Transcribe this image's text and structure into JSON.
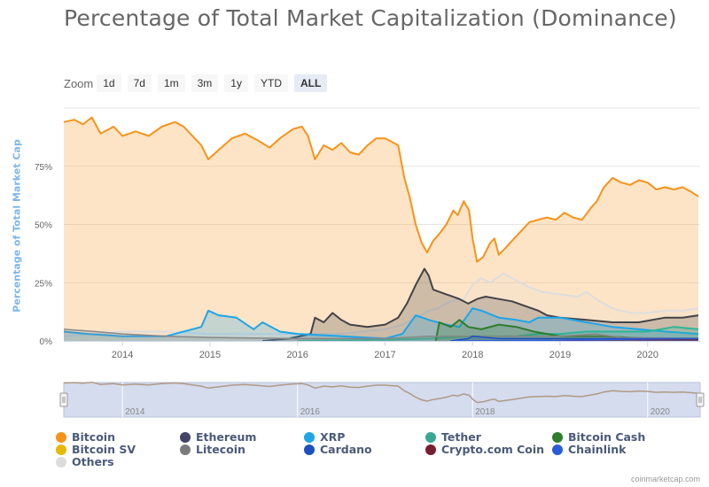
{
  "page": {
    "title": "Percentage of Total Market Capitalization (Dominance)",
    "credits": "coinmarketcap.com"
  },
  "zoom": {
    "label": "Zoom",
    "buttons": [
      "1d",
      "7d",
      "1m",
      "3m",
      "1y",
      "YTD",
      "ALL"
    ],
    "active": "ALL"
  },
  "colors": {
    "background": "#ffffff",
    "grid": "#e6e6e6",
    "axis_text": "#666666",
    "y_axis_title": "#7cb5ec",
    "navigator_bg": "#ccd6eb",
    "navigator_line": "#b09a85"
  },
  "chart_data": {
    "type": "area",
    "title": "Percentage of Total Market Capitalization (Dominance)",
    "ylabel": "Percentage of Total Market Cap",
    "xlabel": "",
    "x_range": [
      2013.33,
      2020.6
    ],
    "ylim": [
      0,
      100
    ],
    "y_ticks": [
      0,
      25,
      50,
      75
    ],
    "y_tick_labels": [
      "0%",
      "25%",
      "50%",
      "75%"
    ],
    "x_ticks": [
      2014,
      2015,
      2016,
      2017,
      2018,
      2019,
      2020
    ],
    "x_tick_labels": [
      "2014",
      "2015",
      "2016",
      "2017",
      "2018",
      "2019",
      "2020"
    ],
    "navigator_ticks": [
      2014,
      2016,
      2018,
      2020
    ],
    "navigator_tick_labels": [
      "2014",
      "2016",
      "2018",
      "2020"
    ],
    "grid": true,
    "legend_position": "bottom",
    "series": [
      {
        "name": "Bitcoin",
        "color": "#f7931a",
        "fill_opacity": 0.25,
        "line_width": 2,
        "points": [
          [
            2013.33,
            94
          ],
          [
            2013.45,
            95
          ],
          [
            2013.55,
            93
          ],
          [
            2013.65,
            96
          ],
          [
            2013.75,
            89
          ],
          [
            2013.9,
            92
          ],
          [
            2014.0,
            88
          ],
          [
            2014.15,
            90
          ],
          [
            2014.3,
            88
          ],
          [
            2014.45,
            92
          ],
          [
            2014.6,
            94
          ],
          [
            2014.7,
            92
          ],
          [
            2014.8,
            88
          ],
          [
            2014.9,
            84
          ],
          [
            2014.98,
            78
          ],
          [
            2015.1,
            82
          ],
          [
            2015.25,
            87
          ],
          [
            2015.4,
            89
          ],
          [
            2015.55,
            86
          ],
          [
            2015.68,
            83
          ],
          [
            2015.8,
            87
          ],
          [
            2015.95,
            91
          ],
          [
            2016.05,
            92
          ],
          [
            2016.12,
            88
          ],
          [
            2016.2,
            78
          ],
          [
            2016.3,
            84
          ],
          [
            2016.4,
            82
          ],
          [
            2016.5,
            85
          ],
          [
            2016.6,
            81
          ],
          [
            2016.7,
            80
          ],
          [
            2016.8,
            84
          ],
          [
            2016.9,
            87
          ],
          [
            2017.0,
            87
          ],
          [
            2017.05,
            86
          ],
          [
            2017.15,
            84
          ],
          [
            2017.22,
            70
          ],
          [
            2017.28,
            62
          ],
          [
            2017.35,
            50
          ],
          [
            2017.42,
            42
          ],
          [
            2017.48,
            38
          ],
          [
            2017.55,
            43
          ],
          [
            2017.62,
            46
          ],
          [
            2017.7,
            50
          ],
          [
            2017.78,
            56
          ],
          [
            2017.83,
            54
          ],
          [
            2017.9,
            60
          ],
          [
            2017.96,
            56
          ],
          [
            2018.0,
            44
          ],
          [
            2018.05,
            34
          ],
          [
            2018.12,
            36
          ],
          [
            2018.2,
            42
          ],
          [
            2018.25,
            44
          ],
          [
            2018.3,
            37
          ],
          [
            2018.38,
            40
          ],
          [
            2018.45,
            43
          ],
          [
            2018.55,
            47
          ],
          [
            2018.65,
            51
          ],
          [
            2018.75,
            52
          ],
          [
            2018.85,
            53
          ],
          [
            2018.95,
            52
          ],
          [
            2019.05,
            55
          ],
          [
            2019.15,
            53
          ],
          [
            2019.25,
            52
          ],
          [
            2019.35,
            57
          ],
          [
            2019.42,
            60
          ],
          [
            2019.5,
            66
          ],
          [
            2019.6,
            70
          ],
          [
            2019.7,
            68
          ],
          [
            2019.8,
            67
          ],
          [
            2019.9,
            69
          ],
          [
            2020.0,
            68
          ],
          [
            2020.1,
            65
          ],
          [
            2020.2,
            66
          ],
          [
            2020.3,
            65
          ],
          [
            2020.4,
            66
          ],
          [
            2020.5,
            64
          ],
          [
            2020.58,
            62
          ]
        ]
      },
      {
        "name": "Others",
        "color": "#dddddd",
        "fill_opacity": 0.15,
        "line_width": 2,
        "points": [
          [
            2013.33,
            2
          ],
          [
            2014.0,
            4
          ],
          [
            2014.5,
            4
          ],
          [
            2015.0,
            3
          ],
          [
            2015.5,
            3
          ],
          [
            2016.0,
            3
          ],
          [
            2016.5,
            3
          ],
          [
            2017.0,
            5
          ],
          [
            2017.2,
            7
          ],
          [
            2017.4,
            11
          ],
          [
            2017.5,
            13
          ],
          [
            2017.6,
            14
          ],
          [
            2017.75,
            17
          ],
          [
            2017.9,
            18
          ],
          [
            2018.0,
            24
          ],
          [
            2018.1,
            27
          ],
          [
            2018.2,
            25
          ],
          [
            2018.35,
            29
          ],
          [
            2018.5,
            26
          ],
          [
            2018.65,
            23
          ],
          [
            2018.8,
            21
          ],
          [
            2019.0,
            20
          ],
          [
            2019.2,
            19
          ],
          [
            2019.3,
            21
          ],
          [
            2019.45,
            17
          ],
          [
            2019.6,
            14
          ],
          [
            2019.8,
            12
          ],
          [
            2020.0,
            12
          ],
          [
            2020.2,
            13
          ],
          [
            2020.4,
            13
          ],
          [
            2020.58,
            14
          ]
        ]
      },
      {
        "name": "Ethereum",
        "color": "#434348",
        "fill_opacity": 0.25,
        "line_width": 2,
        "points": [
          [
            2015.6,
            0
          ],
          [
            2015.9,
            1
          ],
          [
            2016.15,
            3
          ],
          [
            2016.2,
            10
          ],
          [
            2016.3,
            8
          ],
          [
            2016.4,
            12
          ],
          [
            2016.5,
            9
          ],
          [
            2016.6,
            7
          ],
          [
            2016.8,
            6
          ],
          [
            2017.0,
            7
          ],
          [
            2017.15,
            10
          ],
          [
            2017.25,
            16
          ],
          [
            2017.35,
            24
          ],
          [
            2017.45,
            31
          ],
          [
            2017.5,
            28
          ],
          [
            2017.55,
            22
          ],
          [
            2017.7,
            20
          ],
          [
            2017.85,
            18
          ],
          [
            2017.95,
            16
          ],
          [
            2018.05,
            18
          ],
          [
            2018.15,
            19
          ],
          [
            2018.3,
            18
          ],
          [
            2018.45,
            17
          ],
          [
            2018.6,
            15
          ],
          [
            2018.75,
            13
          ],
          [
            2018.85,
            11
          ],
          [
            2019.0,
            10
          ],
          [
            2019.3,
            9
          ],
          [
            2019.6,
            8
          ],
          [
            2019.9,
            8
          ],
          [
            2020.2,
            10
          ],
          [
            2020.4,
            10
          ],
          [
            2020.58,
            11
          ]
        ]
      },
      {
        "name": "XRP",
        "color": "#1ea5e8",
        "fill_opacity": 0.25,
        "line_width": 2,
        "points": [
          [
            2013.33,
            4
          ],
          [
            2013.6,
            3
          ],
          [
            2014.0,
            2
          ],
          [
            2014.5,
            2
          ],
          [
            2014.9,
            6
          ],
          [
            2014.98,
            13
          ],
          [
            2015.1,
            11
          ],
          [
            2015.3,
            10
          ],
          [
            2015.5,
            5
          ],
          [
            2015.6,
            8
          ],
          [
            2015.8,
            4
          ],
          [
            2016.0,
            3
          ],
          [
            2016.5,
            2
          ],
          [
            2017.0,
            1
          ],
          [
            2017.2,
            3
          ],
          [
            2017.35,
            11
          ],
          [
            2017.5,
            9
          ],
          [
            2017.7,
            7
          ],
          [
            2017.85,
            6
          ],
          [
            2018.0,
            14
          ],
          [
            2018.1,
            13
          ],
          [
            2018.3,
            10
          ],
          [
            2018.5,
            9
          ],
          [
            2018.65,
            8
          ],
          [
            2018.75,
            10
          ],
          [
            2019.0,
            10
          ],
          [
            2019.3,
            8
          ],
          [
            2019.6,
            6
          ],
          [
            2019.9,
            5
          ],
          [
            2020.2,
            4
          ],
          [
            2020.58,
            3
          ]
        ]
      },
      {
        "name": "Tether",
        "color": "#2eb598",
        "fill_opacity": 0.25,
        "line_width": 2,
        "points": [
          [
            2016.0,
            0
          ],
          [
            2017.0,
            0.5
          ],
          [
            2017.5,
            1
          ],
          [
            2018.0,
            2
          ],
          [
            2018.5,
            2
          ],
          [
            2018.75,
            3
          ],
          [
            2019.0,
            3
          ],
          [
            2019.3,
            4
          ],
          [
            2019.7,
            4
          ],
          [
            2020.0,
            4
          ],
          [
            2020.3,
            6
          ],
          [
            2020.58,
            5
          ]
        ]
      },
      {
        "name": "Bitcoin Cash",
        "color": "#2f7d2f",
        "fill_opacity": 0.25,
        "line_width": 2,
        "points": [
          [
            2017.58,
            0
          ],
          [
            2017.62,
            8
          ],
          [
            2017.75,
            6
          ],
          [
            2017.85,
            9
          ],
          [
            2017.95,
            6
          ],
          [
            2018.1,
            5
          ],
          [
            2018.3,
            7
          ],
          [
            2018.5,
            6
          ],
          [
            2018.7,
            4
          ],
          [
            2018.85,
            3
          ],
          [
            2019.0,
            2
          ],
          [
            2019.5,
            2
          ],
          [
            2020.0,
            1
          ],
          [
            2020.58,
            1
          ]
        ]
      },
      {
        "name": "Litecoin",
        "color": "#888888",
        "fill_opacity": 0.25,
        "line_width": 1.5,
        "points": [
          [
            2013.33,
            5
          ],
          [
            2013.7,
            4
          ],
          [
            2014.0,
            3
          ],
          [
            2014.5,
            2
          ],
          [
            2015.0,
            1.5
          ],
          [
            2016.0,
            1
          ],
          [
            2017.0,
            1
          ],
          [
            2017.5,
            2
          ],
          [
            2018.0,
            2
          ],
          [
            2019.0,
            2
          ],
          [
            2019.4,
            3
          ],
          [
            2019.7,
            1.5
          ],
          [
            2020.58,
            1
          ]
        ]
      },
      {
        "name": "Bitcoin SV",
        "color": "#e6b800",
        "fill_opacity": 0.25,
        "line_width": 1.5,
        "points": [
          [
            2018.87,
            0
          ],
          [
            2019.0,
            1
          ],
          [
            2019.3,
            1
          ],
          [
            2020.0,
            1
          ],
          [
            2020.58,
            1
          ]
        ]
      },
      {
        "name": "Cardano",
        "color": "#1d4fbf",
        "fill_opacity": 0.25,
        "line_width": 1.5,
        "points": [
          [
            2017.75,
            0
          ],
          [
            2017.95,
            1
          ],
          [
            2018.0,
            2
          ],
          [
            2018.3,
            1
          ],
          [
            2019.0,
            1
          ],
          [
            2020.58,
            1
          ]
        ]
      },
      {
        "name": "Crypto.com Coin",
        "color": "#7a1d2f",
        "fill_opacity": 0.25,
        "line_width": 1.5,
        "points": [
          [
            2018.9,
            0
          ],
          [
            2019.5,
            0.5
          ],
          [
            2020.58,
            0.5
          ]
        ]
      },
      {
        "name": "Chainlink",
        "color": "#2a5bd7",
        "fill_opacity": 0.25,
        "line_width": 1.5,
        "points": [
          [
            2017.8,
            0
          ],
          [
            2019.0,
            0.3
          ],
          [
            2020.3,
            1
          ],
          [
            2020.58,
            1
          ]
        ]
      }
    ],
    "legend": [
      {
        "name": "Bitcoin",
        "color": "#f7931a"
      },
      {
        "name": "Ethereum",
        "color": "#434368"
      },
      {
        "name": "XRP",
        "color": "#1ea5e8"
      },
      {
        "name": "Tether",
        "color": "#3aa891"
      },
      {
        "name": "Bitcoin Cash",
        "color": "#2f7d2f"
      },
      {
        "name": "Bitcoin SV",
        "color": "#e6b800"
      },
      {
        "name": "Litecoin",
        "color": "#7a7a7a"
      },
      {
        "name": "Cardano",
        "color": "#1d4fbf"
      },
      {
        "name": "Crypto.com Coin",
        "color": "#7a1d2f"
      },
      {
        "name": "Chainlink",
        "color": "#2a5bd7"
      },
      {
        "name": "Others",
        "color": "#dcdcdc"
      }
    ]
  }
}
